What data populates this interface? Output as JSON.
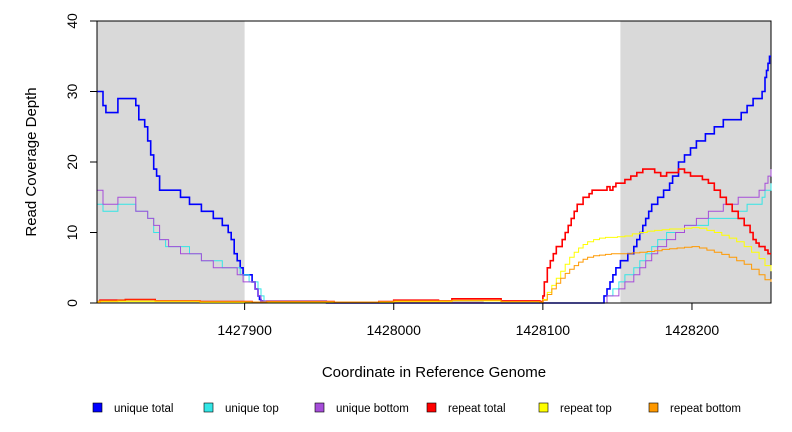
{
  "chart_data": {
    "type": "line",
    "xlabel": "Coordinate in Reference Genome",
    "ylabel": "Read Coverage Depth",
    "xlim": [
      1427801,
      1428253
    ],
    "ylim": [
      0,
      40
    ],
    "x_ticks": [
      1427900,
      1428000,
      1428100,
      1428200
    ],
    "y_ticks": [
      0,
      10,
      20,
      30,
      40
    ],
    "grid": false,
    "legend_position": "bottom",
    "shaded_regions": [
      {
        "x": [
          1427801,
          1427900
        ],
        "color": "#d9d9d9"
      },
      {
        "x": [
          1428152,
          1428253
        ],
        "color": "#d9d9d9"
      }
    ],
    "series": [
      {
        "name": "unique total",
        "color": "#0000ff",
        "width": 1.6,
        "x": [
          1427801,
          1427805,
          1427807,
          1427815,
          1427827,
          1427829,
          1427831,
          1427833,
          1427835,
          1427837,
          1427839,
          1427841,
          1427843,
          1427845,
          1427847,
          1427849,
          1427851,
          1427853,
          1427855,
          1427857,
          1427863,
          1427871,
          1427879,
          1427885,
          1427889,
          1427891,
          1427893,
          1427895,
          1427897,
          1427899,
          1427901,
          1427903,
          1427905,
          1427907,
          1427909,
          1427910,
          1427911,
          1427912,
          1427914,
          1427917,
          1427955,
          1427997,
          1428010,
          1428035,
          1428060,
          1428090,
          1428099,
          1428139,
          1428141,
          1428143,
          1428145,
          1428147,
          1428149,
          1428152,
          1428157,
          1428161,
          1428163,
          1428165,
          1428167,
          1428169,
          1428171,
          1428173,
          1428177,
          1428181,
          1428185,
          1428187,
          1428191,
          1428195,
          1428199,
          1428203,
          1428209,
          1428215,
          1428221,
          1428227,
          1428233,
          1428237,
          1428241,
          1428245,
          1428247,
          1428249,
          1428250,
          1428251,
          1428252,
          1428253
        ],
        "y": [
          30,
          28,
          27,
          29,
          28,
          26,
          26,
          25,
          23,
          21,
          19,
          18,
          16,
          16,
          16,
          16,
          16,
          16,
          16,
          15,
          14,
          13,
          12,
          11,
          10,
          9,
          7,
          6,
          5,
          4,
          4,
          4,
          3,
          2,
          1,
          0.5,
          0.3,
          0.2,
          0.1,
          0.1,
          0,
          0,
          0,
          0,
          0,
          0,
          0,
          0,
          1,
          2,
          3,
          4,
          5,
          6,
          7,
          8,
          9,
          10,
          11,
          12,
          13,
          14,
          15,
          16,
          17,
          18,
          20,
          21,
          22,
          23,
          24,
          25,
          26,
          26,
          27,
          28,
          29,
          29,
          30,
          32,
          33,
          34,
          35,
          35
        ]
      },
      {
        "name": "unique top",
        "color": "#33e6e6",
        "width": 1,
        "x": [
          1427801,
          1427805,
          1427815,
          1427827,
          1427835,
          1427839,
          1427843,
          1427847,
          1427853,
          1427863,
          1427871,
          1427879,
          1427885,
          1427891,
          1427897,
          1427903,
          1427909,
          1427911,
          1427913,
          1427955,
          1428060,
          1428099,
          1428139,
          1428143,
          1428147,
          1428151,
          1428155,
          1428161,
          1428165,
          1428169,
          1428173,
          1428177,
          1428183,
          1428189,
          1428195,
          1428203,
          1428211,
          1428221,
          1428231,
          1428237,
          1428243,
          1428247,
          1428249,
          1428251,
          1428253
        ],
        "y": [
          14,
          13,
          14,
          13,
          12,
          10,
          9,
          8,
          8,
          7,
          6,
          6,
          5,
          5,
          4,
          3,
          2,
          1,
          0.3,
          0.1,
          0,
          0,
          0,
          1,
          2,
          3,
          4,
          5,
          6,
          7,
          8,
          9,
          10,
          10,
          11,
          11,
          12,
          12,
          13,
          14,
          14,
          15,
          16,
          16,
          17
        ]
      },
      {
        "name": "unique bottom",
        "color": "#a64dd9",
        "width": 1,
        "x": [
          1427801,
          1427805,
          1427815,
          1427827,
          1427835,
          1427839,
          1427843,
          1427849,
          1427857,
          1427863,
          1427871,
          1427879,
          1427887,
          1427895,
          1427899,
          1427903,
          1427907,
          1427909,
          1427911,
          1427955,
          1428060,
          1428099,
          1428139,
          1428143,
          1428147,
          1428151,
          1428155,
          1428161,
          1428165,
          1428169,
          1428173,
          1428177,
          1428183,
          1428189,
          1428195,
          1428203,
          1428211,
          1428221,
          1428231,
          1428239,
          1428245,
          1428249,
          1428251,
          1428253
        ],
        "y": [
          16,
          14,
          15,
          13,
          12,
          11,
          9,
          8,
          7,
          7,
          6,
          5,
          5,
          4,
          3,
          3,
          2,
          1,
          0.3,
          0.1,
          0,
          0,
          0,
          1,
          1,
          2,
          3,
          4,
          5,
          6,
          7,
          8,
          9,
          10,
          11,
          12,
          13,
          14,
          15,
          15,
          16,
          17,
          18,
          19
        ]
      },
      {
        "name": "repeat total",
        "color": "#ff0000",
        "width": 1.6,
        "x": [
          1427801,
          1427803,
          1427820,
          1427840,
          1427870,
          1427900,
          1427905,
          1427915,
          1427960,
          1427990,
          1428000,
          1428030,
          1428039,
          1428072,
          1428098,
          1428100,
          1428101,
          1428103,
          1428105,
          1428107,
          1428109,
          1428111,
          1428113,
          1428115,
          1428117,
          1428119,
          1428121,
          1428123,
          1428125,
          1428127,
          1428129,
          1428131,
          1428133,
          1428135,
          1428137,
          1428139,
          1428141,
          1428143,
          1428145,
          1428147,
          1428149,
          1428151,
          1428155,
          1428159,
          1428163,
          1428167,
          1428171,
          1428175,
          1428179,
          1428183,
          1428187,
          1428191,
          1428195,
          1428199,
          1428203,
          1428207,
          1428211,
          1428215,
          1428219,
          1428223,
          1428227,
          1428231,
          1428235,
          1428239,
          1428241,
          1428243,
          1428245,
          1428247,
          1428249,
          1428251,
          1428253
        ],
        "y": [
          0.2,
          0.4,
          0.5,
          0.3,
          0.2,
          0.2,
          0.1,
          0.2,
          0.1,
          0.2,
          0.4,
          0.3,
          0.6,
          0.3,
          0.2,
          1,
          3,
          5,
          6,
          7,
          8,
          8,
          9,
          10,
          11,
          12,
          13,
          14,
          14,
          15,
          15,
          15.5,
          16,
          16,
          16,
          16,
          16,
          16.5,
          16,
          16.5,
          17,
          17,
          17.5,
          18,
          18.5,
          19,
          19,
          18.5,
          18,
          18.5,
          18.5,
          19,
          18.5,
          18,
          18,
          17.5,
          17,
          16,
          15,
          14,
          13,
          12,
          11,
          10,
          9,
          8.5,
          8,
          8,
          7.5,
          7,
          7
        ]
      },
      {
        "name": "repeat top",
        "color": "#ffff00",
        "width": 1,
        "x": [
          1427801,
          1427870,
          1427900,
          1427960,
          1428000,
          1428030,
          1428039,
          1428072,
          1428098,
          1428100,
          1428103,
          1428106,
          1428109,
          1428112,
          1428115,
          1428118,
          1428121,
          1428124,
          1428127,
          1428130,
          1428134,
          1428138,
          1428142,
          1428146,
          1428150,
          1428155,
          1428160,
          1428165,
          1428170,
          1428175,
          1428180,
          1428185,
          1428190,
          1428195,
          1428200,
          1428205,
          1428210,
          1428215,
          1428220,
          1428225,
          1428230,
          1428235,
          1428240,
          1428245,
          1428249,
          1428253
        ],
        "y": [
          0.2,
          0.1,
          0.1,
          0.1,
          0.2,
          0.2,
          0.3,
          0.2,
          0.1,
          0.5,
          1.5,
          2.5,
          3.5,
          4.5,
          5.5,
          6.5,
          7.2,
          7.8,
          8.3,
          8.7,
          9,
          9.2,
          9.3,
          9.3,
          9.4,
          9.5,
          9.8,
          10,
          10.2,
          10.3,
          10.4,
          10.5,
          10.5,
          10.6,
          10.7,
          10.6,
          10.3,
          10,
          9.6,
          9.2,
          8.7,
          8,
          7.2,
          6.3,
          5.3,
          4.5
        ]
      },
      {
        "name": "repeat bottom",
        "color": "#ff9900",
        "width": 1,
        "x": [
          1427801,
          1427803,
          1427815,
          1427830,
          1427840,
          1427870,
          1427900,
          1427905,
          1427915,
          1427960,
          1427990,
          1428000,
          1428030,
          1428039,
          1428072,
          1428098,
          1428100,
          1428103,
          1428106,
          1428109,
          1428112,
          1428115,
          1428118,
          1428121,
          1428124,
          1428127,
          1428130,
          1428134,
          1428138,
          1428142,
          1428146,
          1428150,
          1428155,
          1428160,
          1428165,
          1428170,
          1428175,
          1428180,
          1428185,
          1428190,
          1428195,
          1428200,
          1428205,
          1428210,
          1428215,
          1428220,
          1428225,
          1428230,
          1428235,
          1428240,
          1428245,
          1428249,
          1428253
        ],
        "y": [
          0.1,
          0.3,
          0.4,
          0.4,
          0.3,
          0.2,
          0.2,
          0.1,
          0.2,
          0.1,
          0.2,
          0.3,
          0.3,
          0.4,
          0.2,
          0.1,
          0.4,
          1.2,
          2,
          2.8,
          3.5,
          4.2,
          4.8,
          5.3,
          5.8,
          6.2,
          6.5,
          6.7,
          6.8,
          6.9,
          7,
          7,
          7,
          7.1,
          7.2,
          7.3,
          7.4,
          7.6,
          7.7,
          7.8,
          7.9,
          8,
          7.8,
          7.5,
          7.2,
          6.9,
          6.5,
          6,
          5.5,
          4.8,
          4,
          3.3,
          3
        ]
      }
    ]
  }
}
